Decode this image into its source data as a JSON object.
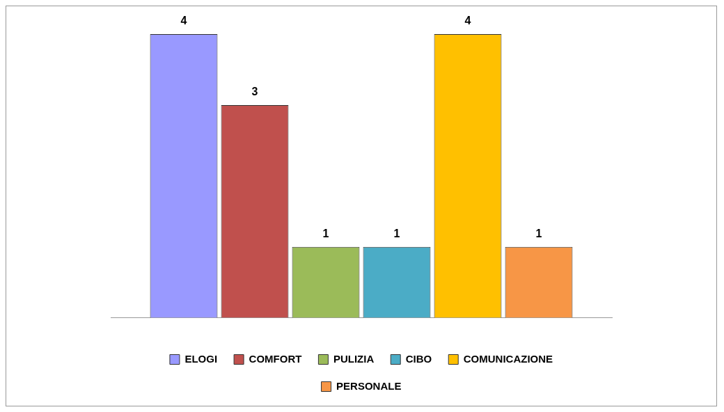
{
  "chart_data": {
    "type": "bar",
    "categories": [
      null
    ],
    "series": [
      {
        "name": "ELOGI",
        "color": "#9999ff",
        "values": [
          4
        ]
      },
      {
        "name": "COMFORT",
        "color": "#c0504d",
        "values": [
          3
        ]
      },
      {
        "name": "PULIZIA",
        "color": "#9bbb59",
        "values": [
          1
        ]
      },
      {
        "name": "CIBO",
        "color": "#4bacc6",
        "values": [
          1
        ]
      },
      {
        "name": "COMUNICAZIONE",
        "color": "#ffc000",
        "values": [
          4
        ]
      },
      {
        "name": "PERSONALE",
        "color": "#f79646",
        "values": [
          1
        ]
      }
    ],
    "data_labels": true,
    "grid": false,
    "legend": "bottom"
  }
}
